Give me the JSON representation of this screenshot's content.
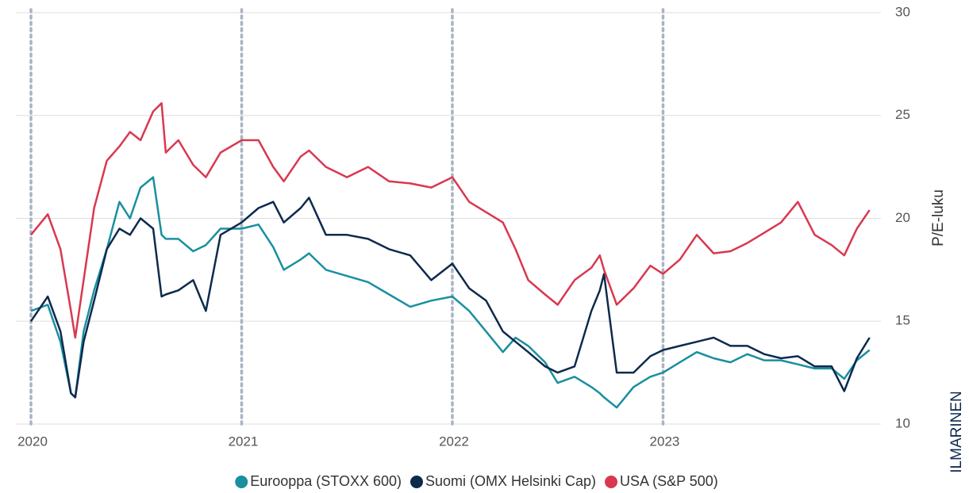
{
  "chart_data": {
    "type": "line",
    "x": [
      2020.0,
      2020.08,
      2020.14,
      2020.19,
      2020.21,
      2020.25,
      2020.3,
      2020.36,
      2020.42,
      2020.47,
      2020.52,
      2020.58,
      2020.62,
      2020.64,
      2020.7,
      2020.77,
      2020.83,
      2020.9,
      2021.0,
      2021.08,
      2021.15,
      2021.2,
      2021.28,
      2021.32,
      2021.4,
      2021.5,
      2021.6,
      2021.7,
      2021.8,
      2021.9,
      2022.0,
      2022.08,
      2022.16,
      2022.24,
      2022.3,
      2022.36,
      2022.44,
      2022.5,
      2022.58,
      2022.66,
      2022.7,
      2022.72,
      2022.78,
      2022.86,
      2022.94,
      2023.0,
      2023.08,
      2023.16,
      2023.24,
      2023.32,
      2023.4,
      2023.48,
      2023.56,
      2023.64,
      2023.72,
      2023.8,
      2023.86,
      2023.92,
      2023.98
    ],
    "series": [
      {
        "name": "Eurooppa (STOXX 600)",
        "color": "#1a8fa0",
        "values": [
          15.5,
          15.8,
          14,
          11.5,
          11.3,
          14.5,
          16.5,
          18.5,
          20.8,
          20,
          21.5,
          22,
          19.2,
          19,
          19,
          18.4,
          18.7,
          19.5,
          19.5,
          19.7,
          18.6,
          17.5,
          18,
          18.3,
          17.5,
          17.2,
          16.9,
          16.3,
          15.7,
          16,
          16.2,
          15.5,
          14.5,
          13.5,
          14.2,
          13.8,
          13,
          12,
          12.3,
          11.8,
          11.5,
          11.3,
          10.8,
          11.8,
          12.3,
          12.5,
          13,
          13.5,
          13.2,
          13,
          13.4,
          13.1,
          13.1,
          12.9,
          12.7,
          12.7,
          12.2,
          13.1,
          13.6
        ]
      },
      {
        "name": "Suomi (OMX Helsinki Cap)",
        "color": "#0d2a4d",
        "values": [
          15,
          16.2,
          14.5,
          11.5,
          11.3,
          14,
          16,
          18.5,
          19.5,
          19.2,
          20,
          19.5,
          16.2,
          16.3,
          16.5,
          17,
          15.5,
          19.2,
          19.8,
          20.5,
          20.8,
          19.8,
          20.5,
          21,
          19.2,
          19.2,
          19,
          18.5,
          18.2,
          17,
          17.8,
          16.6,
          16,
          14.5,
          14,
          13.5,
          12.8,
          12.5,
          12.8,
          15.5,
          16.5,
          17.3,
          12.5,
          12.5,
          13.3,
          13.6,
          13.8,
          14,
          14.2,
          13.8,
          13.8,
          13.4,
          13.2,
          13.3,
          12.8,
          12.8,
          11.6,
          13.2,
          14.2
        ]
      },
      {
        "name": "USA (S&P 500)",
        "color": "#d9384f",
        "values": [
          19.2,
          20.2,
          18.5,
          15.5,
          14.2,
          17,
          20.5,
          22.8,
          23.5,
          24.2,
          23.8,
          25.2,
          25.6,
          23.2,
          23.8,
          22.6,
          22,
          23.2,
          23.8,
          23.8,
          22.5,
          21.8,
          23,
          23.3,
          22.5,
          22,
          22.5,
          21.8,
          21.7,
          21.5,
          22,
          20.8,
          20.3,
          19.8,
          18.5,
          17,
          16.3,
          15.8,
          17,
          17.6,
          18.2,
          17.5,
          15.8,
          16.6,
          17.7,
          17.3,
          18,
          19.2,
          18.3,
          18.4,
          18.8,
          19.3,
          19.8,
          20.8,
          19.2,
          18.7,
          18.2,
          19.5,
          20.4
        ]
      }
    ],
    "xlim": [
      2020,
      2024
    ],
    "xticks": [
      2020,
      2021,
      2022,
      2023
    ],
    "ylim": [
      10,
      30
    ],
    "yticks": [
      10,
      15,
      20,
      25,
      30
    ],
    "y_label": "P/E-luku",
    "brand": "ILMARINEN",
    "grid": true,
    "legend": "bottom"
  }
}
